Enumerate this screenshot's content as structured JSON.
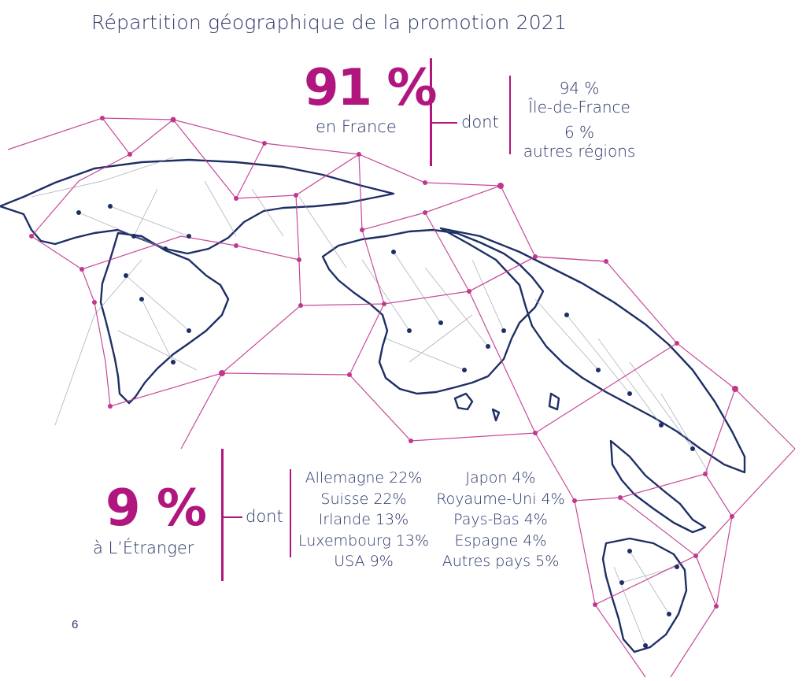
{
  "title": "Répartition géographique de la promotion 2021",
  "france": {
    "percent": "91 %",
    "label": "en France",
    "dont": "dont",
    "breakdown": [
      {
        "value": "94 %",
        "label": "Île-de-France"
      },
      {
        "value": "6 %",
        "label": "autres régions"
      }
    ]
  },
  "abroad": {
    "percent": "9 %",
    "label": "à L’Étranger",
    "dont": "dont",
    "countries_col1": [
      "Allemagne 22%",
      "Suisse 22%",
      "Irlande 13%",
      "Luxembourg 13%",
      "USA 9%"
    ],
    "countries_col2": [
      "Japon 4%",
      "Royaume-Uni 4%",
      "Pays-Bas 4%",
      "Espagne 4%",
      "Autres pays 5%"
    ]
  },
  "page_number": "6",
  "colors": {
    "accent": "#b0167e",
    "text": "#2a3568",
    "network": "#c2378e",
    "land": "#1e2f66"
  }
}
